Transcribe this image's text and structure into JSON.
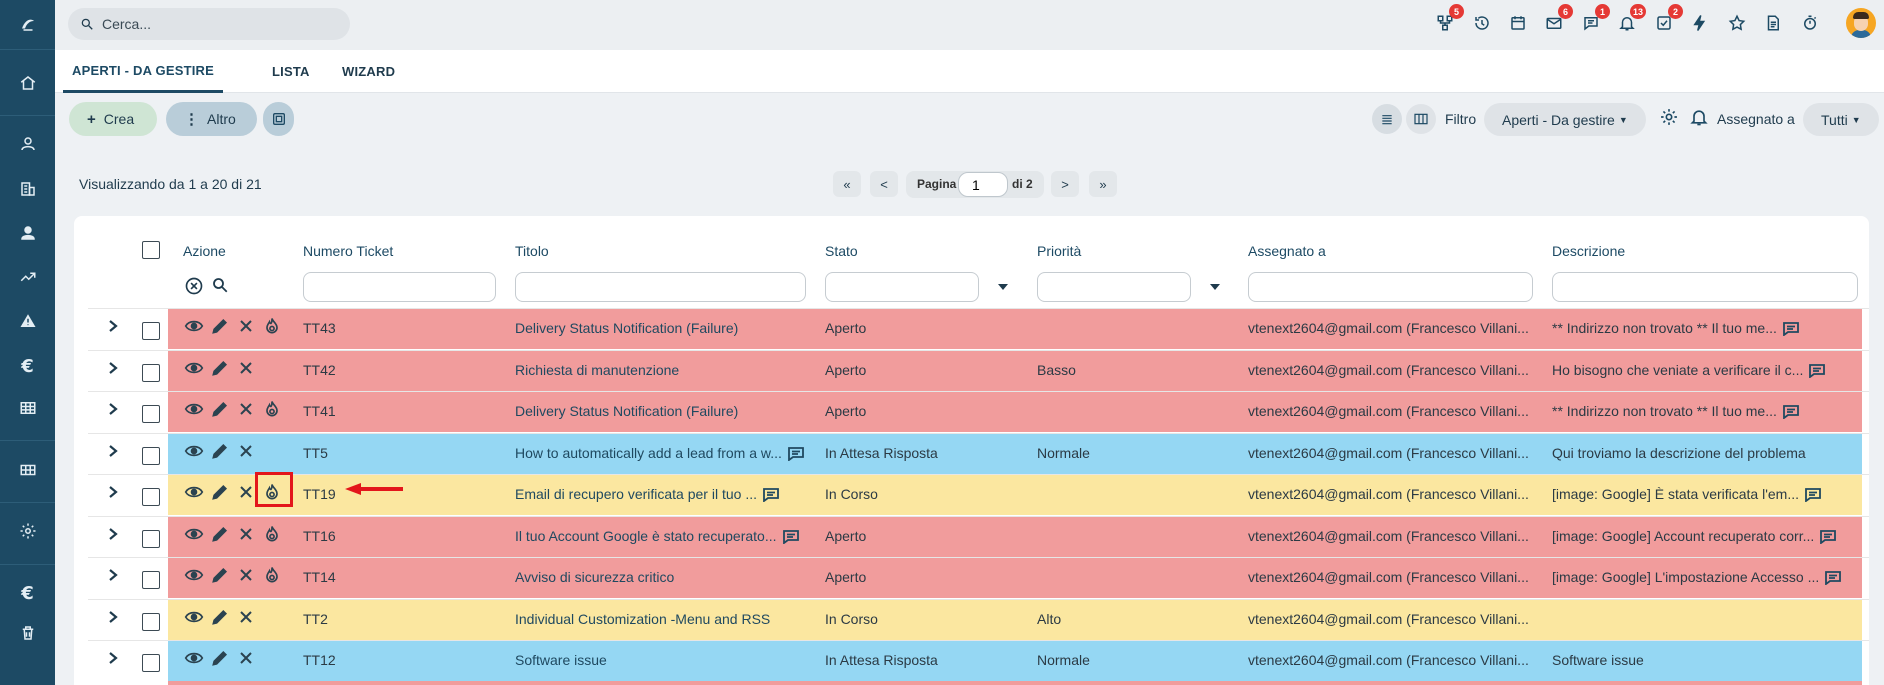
{
  "colors": {
    "sidebar": "#1d4a64",
    "row_red": "#f19c9c",
    "row_blue": "#95d7f3",
    "row_yellow": "#fbe7a0",
    "badge": "#e53935",
    "highlight": "#e3161b"
  },
  "search": {
    "placeholder": "Cerca..."
  },
  "sidebar": {
    "items": [
      "logo-icon",
      "home-icon",
      "user-icon",
      "building-icon",
      "contact-icon",
      "trend-icon",
      "warning-icon",
      "euro-icon",
      "table-icon",
      "grid-icon",
      "gear-icon",
      "euro-icon",
      "trash-icon"
    ]
  },
  "topbar": {
    "icons": [
      {
        "name": "hierarchy-icon",
        "badge": "5"
      },
      {
        "name": "history-icon",
        "badge": ""
      },
      {
        "name": "calendar-icon",
        "badge": ""
      },
      {
        "name": "mail-icon",
        "badge": "6"
      },
      {
        "name": "chat-icon",
        "badge": "1"
      },
      {
        "name": "bell-icon",
        "badge": "13"
      },
      {
        "name": "tasks-icon",
        "badge": "2"
      },
      {
        "name": "lightning-icon",
        "badge": ""
      },
      {
        "name": "star-icon",
        "badge": ""
      },
      {
        "name": "document-icon",
        "badge": ""
      },
      {
        "name": "timer-icon",
        "badge": ""
      }
    ]
  },
  "tabs": [
    {
      "label": "APERTI - DA GESTIRE",
      "active": true
    },
    {
      "label": "LISTA",
      "active": false
    },
    {
      "label": "WIZARD",
      "active": false
    }
  ],
  "toolbar": {
    "create_label": "Crea",
    "more_label": "Altro",
    "filter_label": "Filtro",
    "filter_value": "Aperti - Da gestire",
    "assigned_label": "Assegnato a",
    "assigned_value": "Tutti"
  },
  "listing": {
    "info": "Visualizzando da 1 a 20 di 21",
    "first": "«",
    "prev": "<",
    "page_label": "Pagina",
    "page_value": "1",
    "of_label": "di 2",
    "next": ">",
    "last": "»"
  },
  "table": {
    "headers": {
      "action": "Azione",
      "number": "Numero Ticket",
      "title": "Titolo",
      "status": "Stato",
      "priority": "Priorità",
      "assigned": "Assegnato a",
      "description": "Descrizione"
    },
    "rows": [
      {
        "color": "red",
        "ticket": "TT43",
        "title": "Delivery Status Notification (Failure)",
        "title_comment": false,
        "status": "Aperto",
        "priority": "",
        "assigned": "vtenext2604@gmail.com (Francesco Villani...",
        "description": "** Indirizzo non trovato ** Il tuo me...",
        "desc_comment": true,
        "flame": true
      },
      {
        "color": "red",
        "ticket": "TT42",
        "title": "Richiesta di manutenzione",
        "title_comment": false,
        "status": "Aperto",
        "priority": "Basso",
        "assigned": "vtenext2604@gmail.com (Francesco Villani...",
        "description": "Ho bisogno che veniate a verificare il c...",
        "desc_comment": true,
        "flame": false
      },
      {
        "color": "red",
        "ticket": "TT41",
        "title": "Delivery Status Notification (Failure)",
        "title_comment": false,
        "status": "Aperto",
        "priority": "",
        "assigned": "vtenext2604@gmail.com (Francesco Villani...",
        "description": "** Indirizzo non trovato ** Il tuo me...",
        "desc_comment": true,
        "flame": true
      },
      {
        "color": "blue",
        "ticket": "TT5",
        "title": "How to automatically add a lead from a w...",
        "title_comment": true,
        "status": "In Attesa Risposta",
        "priority": "Normale",
        "assigned": "vtenext2604@gmail.com (Francesco Villani...",
        "description": "Qui troviamo la descrizione del problema",
        "desc_comment": false,
        "flame": false
      },
      {
        "color": "yellow",
        "ticket": "TT19",
        "title": "Email di recupero verificata per il tuo ...",
        "title_comment": true,
        "status": "In Corso",
        "priority": "",
        "assigned": "vtenext2604@gmail.com (Francesco Villani...",
        "description": "[image: Google] È stata verificata l'em...",
        "desc_comment": true,
        "flame": true
      },
      {
        "color": "red",
        "ticket": "TT16",
        "title": "Il tuo Account Google è stato recuperato...",
        "title_comment": true,
        "status": "Aperto",
        "priority": "",
        "assigned": "vtenext2604@gmail.com (Francesco Villani...",
        "description": "[image: Google] Account recuperato corr...",
        "desc_comment": true,
        "flame": true
      },
      {
        "color": "red",
        "ticket": "TT14",
        "title": "Avviso di sicurezza critico",
        "title_comment": false,
        "status": "Aperto",
        "priority": "",
        "assigned": "vtenext2604@gmail.com (Francesco Villani...",
        "description": "[image: Google] L'impostazione Accesso ...",
        "desc_comment": true,
        "flame": true
      },
      {
        "color": "yellow",
        "ticket": "TT2",
        "title": "Individual Customization -Menu and RSS",
        "title_comment": false,
        "status": "In Corso",
        "priority": "Alto",
        "assigned": "vtenext2604@gmail.com (Francesco Villani...",
        "description": "",
        "desc_comment": false,
        "flame": false
      },
      {
        "color": "blue",
        "ticket": "TT12",
        "title": "Software issue",
        "title_comment": false,
        "status": "In Attesa Risposta",
        "priority": "Normale",
        "assigned": "vtenext2604@gmail.com (Francesco Villani...",
        "description": "Software issue",
        "desc_comment": false,
        "flame": false
      }
    ]
  }
}
